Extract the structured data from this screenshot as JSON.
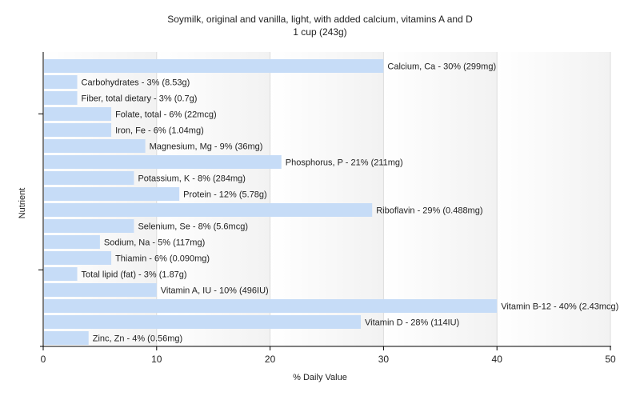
{
  "chart_data": {
    "type": "bar",
    "orientation": "horizontal",
    "title": "Soymilk, original and vanilla, light, with added calcium, vitamins A and D",
    "subtitle": "1 cup (243g)",
    "xlabel": "% Daily Value",
    "ylabel": "Nutrient",
    "xlim": [
      0,
      50
    ],
    "xticks": [
      0,
      10,
      20,
      30,
      40,
      50
    ],
    "grid": true,
    "bar_color": "#c6dcf7",
    "categories": [
      "Calcium, Ca",
      "Carbohydrates",
      "Fiber, total dietary",
      "Folate, total",
      "Iron, Fe",
      "Magnesium, Mg",
      "Phosphorus, P",
      "Potassium, K",
      "Protein",
      "Riboflavin",
      "Selenium, Se",
      "Sodium, Na",
      "Thiamin",
      "Total lipid (fat)",
      "Vitamin A, IU",
      "Vitamin B-12",
      "Vitamin D",
      "Zinc, Zn"
    ],
    "values": [
      30,
      3,
      3,
      6,
      6,
      9,
      21,
      8,
      12,
      29,
      8,
      5,
      6,
      3,
      10,
      40,
      28,
      4
    ],
    "labels": [
      "Calcium, Ca - 30% (299mg)",
      "Carbohydrates - 3% (8.53g)",
      "Fiber, total dietary - 3% (0.7g)",
      "Folate, total - 6% (22mcg)",
      "Iron, Fe - 6% (1.04mg)",
      "Magnesium, Mg - 9% (36mg)",
      "Phosphorus, P - 21% (211mg)",
      "Potassium, K - 8% (284mg)",
      "Protein - 12% (5.78g)",
      "Riboflavin - 29% (0.488mg)",
      "Selenium, Se - 8% (5.6mcg)",
      "Sodium, Na - 5% (117mg)",
      "Thiamin - 6% (0.090mg)",
      "Total lipid (fat) - 3% (1.87g)",
      "Vitamin A, IU - 10% (496IU)",
      "Vitamin B-12 - 40% (2.43mcg)",
      "Vitamin D - 28% (114IU)",
      "Zinc, Zn - 4% (0.56mg)"
    ]
  }
}
